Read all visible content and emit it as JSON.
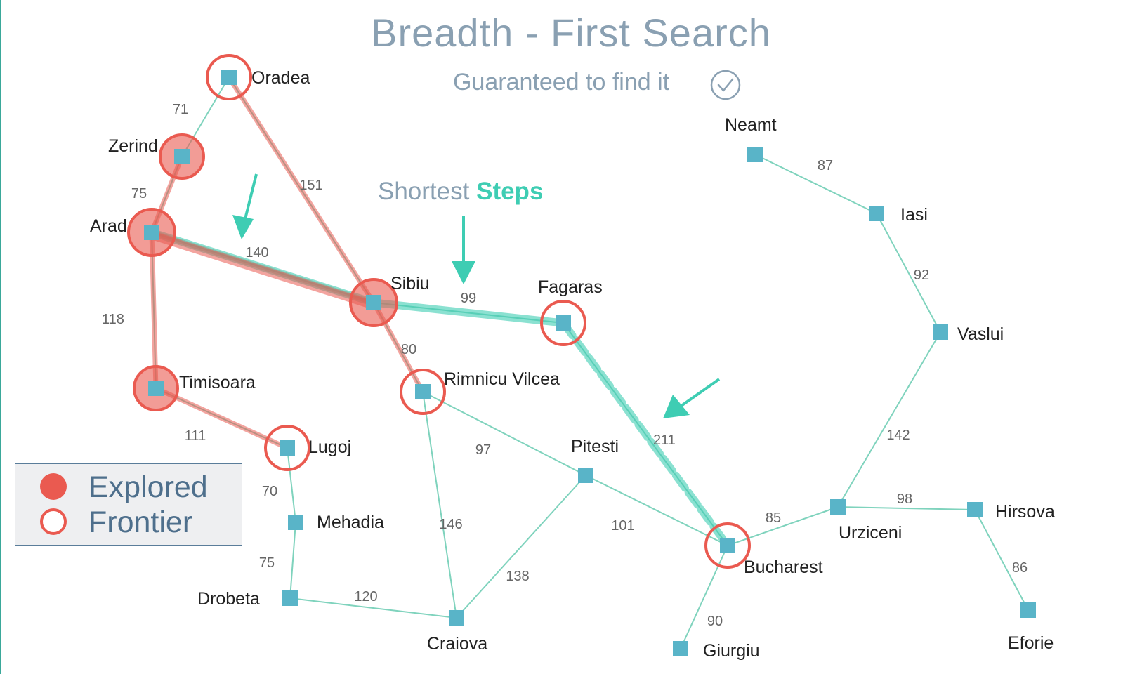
{
  "title": "Breadth - First Search",
  "subtitle": "Guaranteed to find it",
  "steps_label": {
    "prefix": "Shortest",
    "emphasis": "Steps"
  },
  "legend": {
    "explored": "Explored",
    "frontier": "Frontier"
  },
  "colors": {
    "edge": "#7fd3bd",
    "highlight": "#3ecdb3",
    "explored": "#ea5a50",
    "node": "#59b4c8",
    "title": "#8aa0b2"
  },
  "cities": [
    {
      "name": "Oradea",
      "state": "frontier"
    },
    {
      "name": "Zerind",
      "state": "explored"
    },
    {
      "name": "Arad",
      "state": "explored"
    },
    {
      "name": "Sibiu",
      "state": "explored"
    },
    {
      "name": "Timisoara",
      "state": "explored"
    },
    {
      "name": "Lugoj",
      "state": "frontier"
    },
    {
      "name": "Mehadia",
      "state": "none"
    },
    {
      "name": "Drobeta",
      "state": "none"
    },
    {
      "name": "Craiova",
      "state": "none"
    },
    {
      "name": "Rimnicu Vilcea",
      "state": "frontier"
    },
    {
      "name": "Fagaras",
      "state": "frontier"
    },
    {
      "name": "Pitesti",
      "state": "none"
    },
    {
      "name": "Bucharest",
      "state": "frontier"
    },
    {
      "name": "Giurgiu",
      "state": "none"
    },
    {
      "name": "Urziceni",
      "state": "none"
    },
    {
      "name": "Hirsova",
      "state": "none"
    },
    {
      "name": "Eforie",
      "state": "none"
    },
    {
      "name": "Vaslui",
      "state": "none"
    },
    {
      "name": "Iasi",
      "state": "none"
    },
    {
      "name": "Neamt",
      "state": "none"
    }
  ],
  "roads": [
    {
      "from": "Oradea",
      "to": "Zerind",
      "distance": "71"
    },
    {
      "from": "Oradea",
      "to": "Sibiu",
      "distance": "151"
    },
    {
      "from": "Zerind",
      "to": "Arad",
      "distance": "75"
    },
    {
      "from": "Arad",
      "to": "Sibiu",
      "distance": "140"
    },
    {
      "from": "Arad",
      "to": "Timisoara",
      "distance": "118"
    },
    {
      "from": "Timisoara",
      "to": "Lugoj",
      "distance": "111"
    },
    {
      "from": "Lugoj",
      "to": "Mehadia",
      "distance": "70"
    },
    {
      "from": "Mehadia",
      "to": "Drobeta",
      "distance": "75"
    },
    {
      "from": "Drobeta",
      "to": "Craiova",
      "distance": "120"
    },
    {
      "from": "Sibiu",
      "to": "Fagaras",
      "distance": "99"
    },
    {
      "from": "Sibiu",
      "to": "Rimnicu Vilcea",
      "distance": "80"
    },
    {
      "from": "Rimnicu Vilcea",
      "to": "Pitesti",
      "distance": "97"
    },
    {
      "from": "Rimnicu Vilcea",
      "to": "Craiova",
      "distance": "146"
    },
    {
      "from": "Craiova",
      "to": "Pitesti",
      "distance": "138"
    },
    {
      "from": "Pitesti",
      "to": "Bucharest",
      "distance": "101"
    },
    {
      "from": "Fagaras",
      "to": "Bucharest",
      "distance": "211"
    },
    {
      "from": "Bucharest",
      "to": "Giurgiu",
      "distance": "90"
    },
    {
      "from": "Bucharest",
      "to": "Urziceni",
      "distance": "85"
    },
    {
      "from": "Urziceni",
      "to": "Hirsova",
      "distance": "98"
    },
    {
      "from": "Hirsova",
      "to": "Eforie",
      "distance": "86"
    },
    {
      "from": "Urziceni",
      "to": "Vaslui",
      "distance": "142"
    },
    {
      "from": "Vaslui",
      "to": "Iasi",
      "distance": "92"
    },
    {
      "from": "Iasi",
      "to": "Neamt",
      "distance": "87"
    }
  ],
  "explored_roads": [
    [
      "Oradea",
      "Sibiu"
    ],
    [
      "Zerind",
      "Arad"
    ],
    [
      "Arad",
      "Sibiu"
    ],
    [
      "Arad",
      "Timisoara"
    ],
    [
      "Timisoara",
      "Lugoj"
    ],
    [
      "Sibiu",
      "Rimnicu Vilcea"
    ]
  ],
  "shortest_path": [
    "Arad",
    "Sibiu",
    "Fagaras",
    "Bucharest"
  ]
}
